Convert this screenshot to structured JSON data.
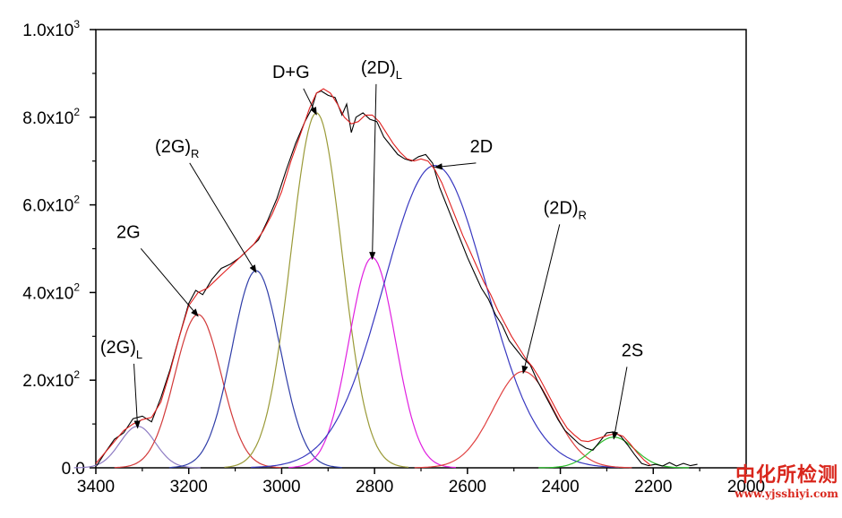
{
  "chart_data": {
    "type": "line",
    "title": "",
    "xlabel": "",
    "ylabel": "",
    "xlim": [
      3400,
      2000
    ],
    "ylim": [
      0,
      1000
    ],
    "x_reversed": true,
    "grid": false,
    "x_ticks": [
      3400,
      3200,
      3000,
      2800,
      2600,
      2400,
      2200,
      2000
    ],
    "y_ticks": [
      {
        "value": 0,
        "mant": "0.0",
        "exp": ""
      },
      {
        "value": 200,
        "mant": "2.0x10",
        "exp": "2"
      },
      {
        "value": 400,
        "mant": "4.0x10",
        "exp": "2"
      },
      {
        "value": 600,
        "mant": "6.0x10",
        "exp": "2"
      },
      {
        "value": 800,
        "mant": "8.0x10",
        "exp": "2"
      },
      {
        "value": 1000,
        "mant": "1.0x10",
        "exp": "3"
      }
    ],
    "peaks": [
      {
        "label": "(2G)",
        "sub": "L",
        "center": 3310,
        "height": 95,
        "sigma": 38,
        "color": "#8e7cc3",
        "label_x": 3345,
        "label_y": 262
      },
      {
        "label": "2G",
        "sub": "",
        "center": 3180,
        "height": 350,
        "sigma": 50,
        "color": "#d23a3a",
        "label_x": 3330,
        "label_y": 525
      },
      {
        "label": "(2G)",
        "sub": "R",
        "center": 3055,
        "height": 450,
        "sigma": 52,
        "color": "#2f3da8",
        "label_x": 3225,
        "label_y": 720
      },
      {
        "label": "D+G",
        "sub": "",
        "center": 2925,
        "height": 810,
        "sigma": 55,
        "color": "#9a9a38",
        "label_x": 2980,
        "label_y": 890
      },
      {
        "label": "(2D)",
        "sub": "L",
        "center": 2805,
        "height": 480,
        "sigma": 50,
        "color": "#e020e0",
        "label_x": 2785,
        "label_y": 900
      },
      {
        "label": "2D",
        "sub": "",
        "center": 2670,
        "height": 690,
        "sigma": 110,
        "color": "#3838c0",
        "label_x": 2570,
        "label_y": 720
      },
      {
        "label": "(2D)",
        "sub": "R",
        "center": 2480,
        "height": 220,
        "sigma": 65,
        "color": "#e04040",
        "label_x": 2390,
        "label_y": 580
      },
      {
        "label": "2S",
        "sub": "",
        "center": 2285,
        "height": 70,
        "sigma": 45,
        "color": "#2cbf2c",
        "label_x": 2245,
        "label_y": 255
      }
    ],
    "series": [
      {
        "style": "raw spectrum",
        "color": "#000000",
        "x": [
          3398,
          3380,
          3360,
          3340,
          3320,
          3300,
          3280,
          3260,
          3240,
          3220,
          3200,
          3185,
          3170,
          3150,
          3130,
          3110,
          3090,
          3070,
          3050,
          3030,
          3010,
          2990,
          2970,
          2950,
          2935,
          2925,
          2915,
          2900,
          2885,
          2870,
          2860,
          2850,
          2840,
          2825,
          2810,
          2795,
          2780,
          2765,
          2750,
          2735,
          2720,
          2705,
          2690,
          2675,
          2660,
          2645,
          2630,
          2615,
          2600,
          2585,
          2570,
          2555,
          2540,
          2525,
          2510,
          2495,
          2480,
          2465,
          2450,
          2435,
          2420,
          2405,
          2390,
          2375,
          2360,
          2345,
          2330,
          2315,
          2300,
          2285,
          2270,
          2255,
          2240,
          2225,
          2210,
          2195,
          2180,
          2165,
          2150,
          2135,
          2120,
          2105
        ],
        "y": [
          5,
          35,
          65,
          80,
          112,
          118,
          105,
          160,
          225,
          300,
          375,
          405,
          395,
          430,
          455,
          465,
          480,
          500,
          520,
          565,
          615,
          680,
          740,
          790,
          820,
          855,
          860,
          850,
          845,
          805,
          830,
          765,
          800,
          810,
          795,
          790,
          755,
          735,
          715,
          705,
          700,
          710,
          715,
          695,
          640,
          600,
          560,
          520,
          480,
          445,
          410,
          385,
          350,
          325,
          290,
          270,
          250,
          235,
          200,
          170,
          140,
          110,
          85,
          70,
          55,
          45,
          40,
          60,
          80,
          82,
          72,
          52,
          30,
          10,
          5,
          8,
          4,
          12,
          4,
          10,
          5,
          8
        ]
      },
      {
        "style": "fit envelope",
        "color": "#e0201f",
        "x": [
          3400,
          3380,
          3360,
          3340,
          3320,
          3300,
          3280,
          3260,
          3240,
          3220,
          3200,
          3180,
          3160,
          3140,
          3120,
          3100,
          3080,
          3060,
          3040,
          3020,
          3000,
          2980,
          2960,
          2940,
          2925,
          2910,
          2895,
          2880,
          2865,
          2850,
          2835,
          2820,
          2805,
          2790,
          2775,
          2760,
          2745,
          2730,
          2715,
          2700,
          2685,
          2670,
          2655,
          2640,
          2625,
          2610,
          2595,
          2580,
          2565,
          2550,
          2535,
          2520,
          2505,
          2490,
          2475,
          2460,
          2445,
          2430,
          2415,
          2400,
          2385,
          2370,
          2355,
          2340,
          2325,
          2310,
          2295,
          2280,
          2265,
          2250,
          2235,
          2220,
          2205
        ],
        "y": [
          10,
          35,
          60,
          85,
          100,
          110,
          115,
          150,
          220,
          300,
          370,
          400,
          410,
          430,
          450,
          470,
          490,
          510,
          540,
          580,
          630,
          700,
          760,
          820,
          855,
          865,
          855,
          830,
          800,
          785,
          790,
          805,
          805,
          790,
          765,
          740,
          720,
          705,
          700,
          705,
          700,
          680,
          650,
          610,
          570,
          530,
          495,
          460,
          425,
          395,
          360,
          330,
          300,
          275,
          250,
          230,
          205,
          175,
          145,
          115,
          90,
          75,
          62,
          60,
          65,
          70,
          75,
          78,
          72,
          55,
          35,
          18,
          5
        ]
      }
    ]
  },
  "watermark": {
    "text": "中化所检测",
    "url": "www.yjsshiyi.com"
  }
}
